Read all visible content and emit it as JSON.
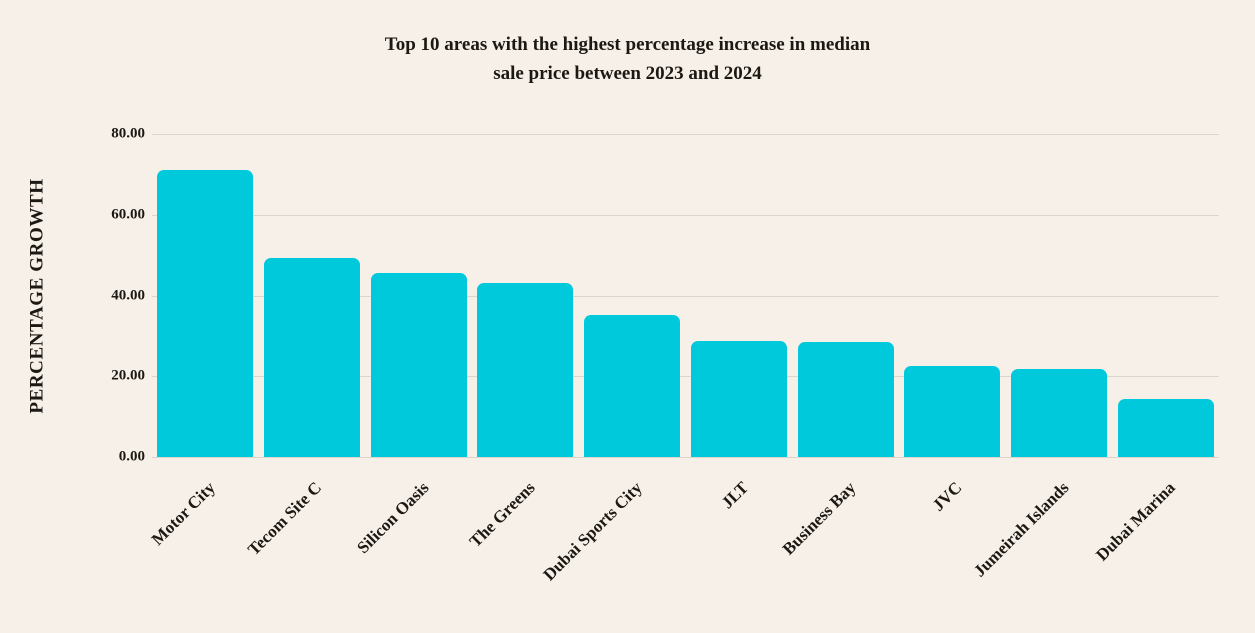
{
  "page": {
    "background_color": "#F6F0E8",
    "text_color": "#1C1813"
  },
  "chart_data": {
    "type": "bar",
    "title_line1": "Top 10 areas with the highest percentage increase in median",
    "title_line2": "sale price between 2023 and 2024",
    "ylabel": "PERCENTAGE GROWTH",
    "xlabel": "",
    "categories": [
      "Motor City",
      "Tecom Site C",
      "Silicon Oasis",
      "The Greens",
      "Dubai Sports City",
      "JLT",
      "Business Bay",
      "JVC",
      "Jumeirah Islands",
      "Dubai Marina"
    ],
    "values": [
      71.0,
      49.4,
      45.6,
      43.2,
      35.2,
      28.8,
      28.4,
      22.5,
      21.8,
      14.4
    ],
    "ylim": [
      0,
      80
    ],
    "yticks": [
      "0.00",
      "20.00",
      "40.00",
      "60.00",
      "80.00"
    ],
    "grid": true,
    "legend": "none",
    "bar_color": "#00C9DC",
    "gridline_color": "#DBD5CC"
  }
}
